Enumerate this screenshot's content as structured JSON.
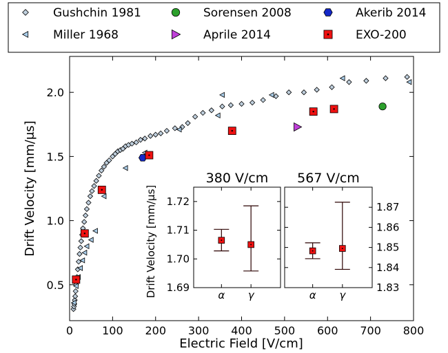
{
  "chart_data": {
    "type": "scatter",
    "xlabel": "Electric Field [V/cm]",
    "ylabel": "Drift Velocity [mm/μs]",
    "xlim": [
      0,
      800
    ],
    "ylim": [
      0.22,
      2.28
    ],
    "xticks": [
      "0",
      "100",
      "200",
      "300",
      "400",
      "500",
      "600",
      "700",
      "800"
    ],
    "yticks": [
      "0.5",
      "1.0",
      "1.5",
      "2.0"
    ],
    "grid": false,
    "legend_position": "top",
    "series": [
      {
        "name": "Gushchin 1981",
        "marker": "diamond",
        "color": "#bfcfdd",
        "x": [
          9,
          10,
          11,
          12,
          13,
          14,
          15,
          17,
          19,
          21,
          23,
          25,
          27,
          29,
          31,
          34,
          37,
          40,
          44,
          48,
          52,
          57,
          62,
          68,
          74,
          80,
          86,
          92,
          100,
          106,
          112,
          118,
          124,
          130,
          137,
          145,
          155,
          165,
          175,
          188,
          200,
          212,
          226,
          245,
          262,
          275,
          292,
          310,
          330,
          355,
          375,
          400,
          425,
          450,
          480,
          510,
          545,
          575,
          610,
          650,
          690,
          735,
          785
        ],
        "y": [
          0.31,
          0.33,
          0.35,
          0.38,
          0.41,
          0.45,
          0.5,
          0.56,
          0.62,
          0.68,
          0.74,
          0.79,
          0.84,
          0.89,
          0.94,
          0.99,
          1.04,
          1.09,
          1.14,
          1.19,
          1.23,
          1.27,
          1.31,
          1.35,
          1.39,
          1.42,
          1.45,
          1.47,
          1.5,
          1.52,
          1.54,
          1.55,
          1.56,
          1.58,
          1.59,
          1.6,
          1.61,
          1.63,
          1.64,
          1.66,
          1.67,
          1.68,
          1.7,
          1.72,
          1.73,
          1.76,
          1.81,
          1.84,
          1.86,
          1.89,
          1.9,
          1.91,
          1.92,
          1.94,
          1.97,
          2.0,
          2.0,
          2.02,
          2.04,
          2.08,
          2.09,
          2.11,
          2.12
        ]
      },
      {
        "name": "Miller 1968",
        "marker": "triangle-left",
        "color": "#a8cce8",
        "x": [
          10,
          15,
          20,
          25,
          30,
          35,
          40,
          50,
          60,
          80,
          130,
          175,
          255,
          345,
          355,
          470,
          635,
          790
        ],
        "y": [
          0.36,
          0.49,
          0.56,
          0.63,
          0.69,
          0.75,
          0.8,
          0.85,
          0.92,
          1.19,
          1.41,
          1.53,
          1.71,
          1.82,
          1.98,
          1.98,
          2.11,
          2.08
        ]
      },
      {
        "name": "Sorensen 2008",
        "marker": "circle",
        "color": "#2ca02c",
        "x": [
          728
        ],
        "y": [
          1.89
        ]
      },
      {
        "name": "Aprile 2014",
        "marker": "triangle-right",
        "color": "#bf40d8",
        "x": [
          530
        ],
        "y": [
          1.73
        ]
      },
      {
        "name": "Akerib 2014",
        "marker": "hexagon",
        "color": "#1428c8",
        "x": [
          170
        ],
        "y": [
          1.49
        ]
      },
      {
        "name": "EXO-200",
        "marker": "square",
        "color": "#ee1111",
        "x": [
          15,
          35,
          75,
          185,
          378,
          567,
          615
        ],
        "y": [
          0.54,
          0.9,
          1.24,
          1.51,
          1.7,
          1.85,
          1.87
        ]
      }
    ],
    "insets": [
      {
        "title": "380 V/cm",
        "ylabel": "Drift Velocity [mm/μs]",
        "axis_side": "left",
        "ylim": [
          1.69,
          1.725
        ],
        "yticks": [
          "1.69",
          "1.70",
          "1.71",
          "1.72"
        ],
        "categories": [
          "α",
          "γ"
        ],
        "points": [
          {
            "category": "α",
            "value": 1.7065,
            "err_low": 1.7028,
            "err_high": 1.7103
          },
          {
            "category": "γ",
            "value": 1.705,
            "err_low": 1.6958,
            "err_high": 1.7185
          }
        ]
      },
      {
        "title": "567 V/cm",
        "ylabel": "",
        "axis_side": "right",
        "ylim": [
          1.83,
          1.88
        ],
        "yticks": [
          "1.83",
          "1.84",
          "1.85",
          "1.86",
          "1.87"
        ],
        "categories": [
          "α",
          "γ"
        ],
        "points": [
          {
            "category": "α",
            "value": 1.8483,
            "err_low": 1.8444,
            "err_high": 1.8523
          },
          {
            "category": "γ",
            "value": 1.8495,
            "err_low": 1.8391,
            "err_high": 1.8725
          }
        ]
      }
    ]
  }
}
